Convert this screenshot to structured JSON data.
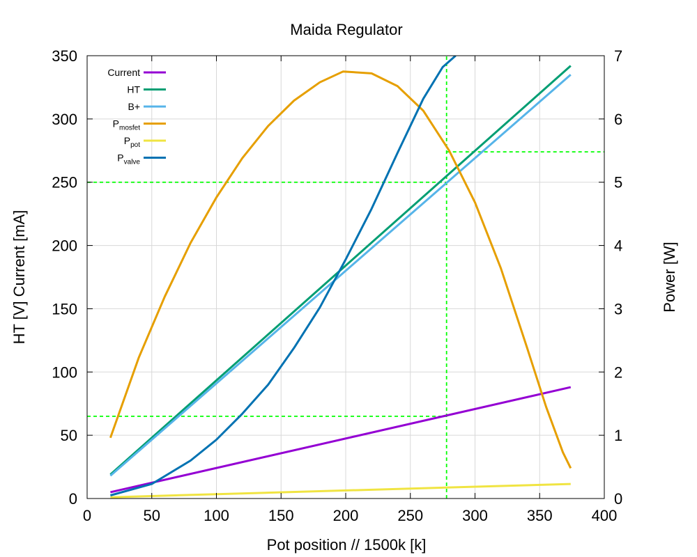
{
  "chart_data": {
    "type": "line",
    "title": "Maida Regulator",
    "xlabel": "Pot position // 1500k [k]",
    "ylabel": "HT [V] Current [mA]",
    "y2label": "Power [W]",
    "xlim": [
      0,
      400
    ],
    "ylim": [
      0,
      350
    ],
    "y2lim": [
      0,
      7
    ],
    "xticks": [
      "0",
      "50",
      "100",
      "150",
      "200",
      "250",
      "300",
      "350",
      "400"
    ],
    "yticks": [
      "0",
      "50",
      "100",
      "150",
      "200",
      "250",
      "300",
      "350"
    ],
    "y2ticks": [
      "0",
      "1",
      "2",
      "3",
      "4",
      "5",
      "6",
      "7"
    ],
    "grid": true,
    "legend_position": "top-left",
    "series": [
      {
        "name": "Current",
        "legend_main": "Current",
        "legend_sub": "",
        "axis": "left",
        "color": "#9400d3",
        "x": [
          18,
          374
        ],
        "y": [
          5,
          88
        ]
      },
      {
        "name": "HT",
        "legend_main": "HT",
        "legend_sub": "",
        "axis": "left",
        "color": "#009e73",
        "x": [
          18,
          374
        ],
        "y": [
          19,
          342
        ]
      },
      {
        "name": "B+",
        "legend_main": "B+",
        "legend_sub": "",
        "axis": "left",
        "color": "#56b4e9",
        "x": [
          18,
          374
        ],
        "y": [
          18,
          335
        ]
      },
      {
        "name": "Pmosfet",
        "legend_main": "P",
        "legend_sub": "mosfet",
        "axis": "right",
        "color": "#e69f00",
        "x": [
          18,
          40,
          60,
          80,
          100,
          120,
          140,
          160,
          180,
          198,
          220,
          240,
          260,
          280,
          300,
          320,
          340,
          355,
          368,
          374
        ],
        "y": [
          0.96,
          2.23,
          3.19,
          4.04,
          4.76,
          5.38,
          5.89,
          6.29,
          6.58,
          6.75,
          6.72,
          6.52,
          6.13,
          5.5,
          4.68,
          3.64,
          2.4,
          1.45,
          0.73,
          0.48
        ]
      },
      {
        "name": "Ppot",
        "legend_main": "P",
        "legend_sub": "pot",
        "axis": "right",
        "color": "#f0e442",
        "x": [
          18,
          374
        ],
        "y": [
          0.02,
          0.23
        ]
      },
      {
        "name": "Pvalve",
        "legend_main": "P",
        "legend_sub": "valve",
        "axis": "right",
        "color": "#0072b2",
        "x": [
          18,
          50,
          80,
          100,
          120,
          140,
          160,
          180,
          200,
          220,
          240,
          260,
          275,
          285
        ],
        "y": [
          0.05,
          0.23,
          0.6,
          0.93,
          1.34,
          1.8,
          2.38,
          3.02,
          3.78,
          4.58,
          5.46,
          6.32,
          6.82,
          7.0
        ]
      }
    ],
    "reference_lines": [
      {
        "orientation": "vertical",
        "axis": "x",
        "value": 278,
        "from": 0,
        "to": 350
      },
      {
        "orientation": "horizontal",
        "axis": "left",
        "value": 250,
        "from": 0,
        "to": 278
      },
      {
        "orientation": "horizontal",
        "axis": "left",
        "value": 65,
        "from": 0,
        "to": 278
      },
      {
        "orientation": "horizontal",
        "axis": "right",
        "value": 5.48,
        "from": 278,
        "to": 400
      }
    ],
    "reference_color": "#00ff00"
  }
}
